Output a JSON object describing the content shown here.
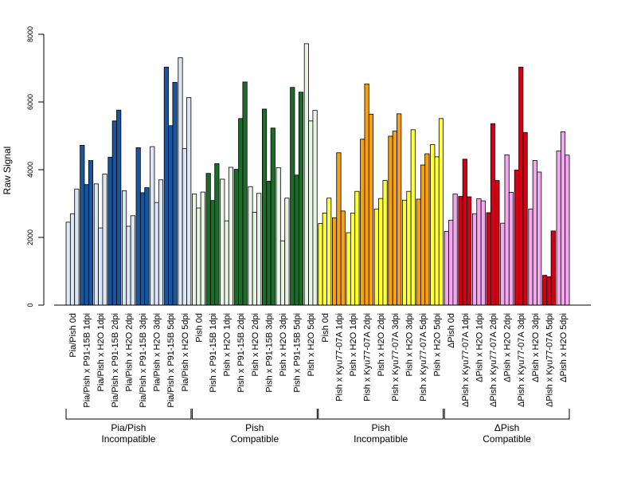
{
  "chart_data": {
    "type": "bar",
    "title": "",
    "xlabel": "",
    "ylabel": "Raw Signal",
    "ylim": [
      0,
      8000
    ],
    "yticks": [
      0,
      2000,
      4000,
      6000,
      8000
    ],
    "bars_per_category": 3,
    "categories": [
      {
        "label": "Pia/Pish 0d",
        "color": "#dbe7f5",
        "values": [
          2450,
          2700,
          3430
        ]
      },
      {
        "label": "Pia/Pish x P91-15B 1dpi",
        "color": "#1a56a0",
        "values": [
          4720,
          3560,
          4270
        ]
      },
      {
        "label": "Pia/Pish x H2O 1dpi",
        "color": "#dbe7f5",
        "values": [
          3580,
          2280,
          3870
        ]
      },
      {
        "label": "Pia/Pish x P91-15B 2dpi",
        "color": "#1a56a0",
        "values": [
          4370,
          5440,
          5760
        ]
      },
      {
        "label": "Pia/Pish x H2O 2dpi",
        "color": "#dbe7f5",
        "values": [
          3380,
          2330,
          2640
        ]
      },
      {
        "label": "Pia/Pish x P91-15B 3dpi",
        "color": "#1a56a0",
        "values": [
          4650,
          3320,
          3470
        ]
      },
      {
        "label": "Pia/Pish x H2O 3dpi",
        "color": "#dbe7f5",
        "values": [
          4680,
          3030,
          3700
        ]
      },
      {
        "label": "Pia/Pish x P91-15B 5dpi",
        "color": "#1a56a0",
        "values": [
          7030,
          5300,
          6580
        ]
      },
      {
        "label": "Pia/Pish x H2O 5dpi",
        "color": "#dbe7f5",
        "values": [
          7310,
          4620,
          6130
        ]
      },
      {
        "label": "Pish 0d",
        "color": "#e8f4e4",
        "values": [
          3280,
          2870,
          3340
        ]
      },
      {
        "label": "Pish x P91-15B 1dpi",
        "color": "#1c6b2a",
        "values": [
          3890,
          3090,
          4180
        ]
      },
      {
        "label": "Pish x H2O 1dpi",
        "color": "#e8f4e4",
        "values": [
          3720,
          2490,
          4070
        ]
      },
      {
        "label": "Pish x P91-15B 2dpi",
        "color": "#1c6b2a",
        "values": [
          4010,
          5510,
          6590
        ]
      },
      {
        "label": "Pish x H2O 2dpi",
        "color": "#e8f4e4",
        "values": [
          3500,
          2740,
          3300
        ]
      },
      {
        "label": "Pish x P91-15B 3dpi",
        "color": "#1c6b2a",
        "values": [
          5790,
          3660,
          5230
        ]
      },
      {
        "label": "Pish x H2O 3dpi",
        "color": "#e8f4e4",
        "values": [
          4060,
          1900,
          3160
        ]
      },
      {
        "label": "Pish x P91-15B 5dpi",
        "color": "#1c6b2a",
        "values": [
          6430,
          3840,
          6290
        ]
      },
      {
        "label": "Pish x H2O 5dpi",
        "color": "#e8f4e4",
        "values": [
          7720,
          5440,
          5750
        ]
      },
      {
        "label": "Pish 0d",
        "color": "#ffff3a",
        "values": [
          2410,
          2720,
          3160
        ]
      },
      {
        "label": "Pish x Kyu77-07A 1dpi",
        "color": "#f5a015",
        "values": [
          2580,
          4500,
          2780
        ]
      },
      {
        "label": "Pish x H2O 1dpi",
        "color": "#ffff3a",
        "values": [
          2140,
          2720,
          3360
        ]
      },
      {
        "label": "Pish x Kyu77-07A 2dpi",
        "color": "#f5a015",
        "values": [
          4900,
          6530,
          5640
        ]
      },
      {
        "label": "Pish x H2O 2dpi",
        "color": "#ffff3a",
        "values": [
          2840,
          3150,
          3680
        ]
      },
      {
        "label": "Pish x Kyu77-07A 3dpi",
        "color": "#f5a015",
        "values": [
          4990,
          5140,
          5650
        ]
      },
      {
        "label": "Pish x H2O 3dpi",
        "color": "#ffff3a",
        "values": [
          3100,
          3360,
          5180
        ]
      },
      {
        "label": "Pish x Kyu77-07A 5dpi",
        "color": "#f5a015",
        "values": [
          3130,
          4140,
          4470
        ]
      },
      {
        "label": "Pish x H2O 5dpi",
        "color": "#ffff3a",
        "values": [
          4740,
          4380,
          5510
        ]
      },
      {
        "label": "ΔPish 0d",
        "color": "#f3a7ee",
        "values": [
          2180,
          2510,
          3280
        ]
      },
      {
        "label": "ΔPish x Kyu77-07A 1dpi",
        "color": "#d40016",
        "values": [
          3210,
          4310,
          3200
        ]
      },
      {
        "label": "ΔPish x H2O 1dpi",
        "color": "#f3a7ee",
        "values": [
          2700,
          3140,
          3080
        ]
      },
      {
        "label": "ΔPish x Kyu77-07A 2dpi",
        "color": "#d40016",
        "values": [
          2730,
          5360,
          3680
        ]
      },
      {
        "label": "ΔPish x H2O 2dpi",
        "color": "#f3a7ee",
        "values": [
          2420,
          4440,
          3330
        ]
      },
      {
        "label": "ΔPish x Kyu77-07A 3dpi",
        "color": "#d40016",
        "values": [
          3990,
          7030,
          5100
        ]
      },
      {
        "label": "ΔPish x H2O 3dpi",
        "color": "#f3a7ee",
        "values": [
          2840,
          4270,
          3930
        ]
      },
      {
        "label": "ΔPish x Kyu77-07A 5dpi",
        "color": "#d40016",
        "values": [
          880,
          840,
          2190
        ]
      },
      {
        "label": "ΔPish x H2O 5dpi",
        "color": "#f3a7ee",
        "values": [
          4550,
          5120,
          4430
        ]
      }
    ],
    "groups": [
      {
        "line1": "Pia/Pish",
        "line2": "Incompatible",
        "start": 0,
        "end": 8
      },
      {
        "line1": "Pish",
        "line2": "Compatible",
        "start": 9,
        "end": 17
      },
      {
        "line1": "Pish",
        "line2": "Incompatible",
        "start": 18,
        "end": 26
      },
      {
        "line1": "ΔPish",
        "line2": "Compatible",
        "start": 27,
        "end": 35
      }
    ]
  }
}
